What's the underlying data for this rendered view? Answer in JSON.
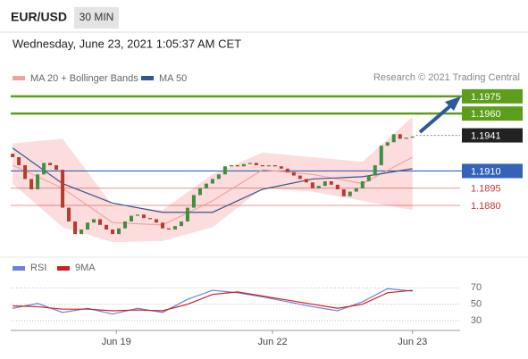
{
  "header": {
    "symbol": "EUR/USD",
    "interval": "30 MIN",
    "timestamp": "Wednesday, June 23, 2021 1:05:37 AM CET"
  },
  "chart_data": {
    "type": "candlestick",
    "credit": "Research © 2021 Trading Central",
    "up_color": "#3f8f3f",
    "down_color": "#b83a2e",
    "open": [
      1.1925,
      1.1922,
      1.1915,
      1.1903,
      1.1894,
      1.1907,
      1.1917,
      1.1915,
      1.1911,
      1.1878,
      1.1866,
      1.1855,
      1.1859,
      1.1865,
      1.1868,
      1.1863,
      1.1859,
      1.1855,
      1.186,
      1.1866,
      1.1871,
      1.1872,
      1.1869,
      1.1868,
      1.1865,
      1.186,
      1.1859,
      1.1862,
      1.1866,
      1.1878,
      1.1889,
      1.1895,
      1.1899,
      1.1903,
      1.1907,
      1.1914,
      1.1915,
      1.1914,
      1.1916,
      1.1917,
      1.1915,
      1.1914,
      1.1915,
      1.1914,
      1.1912,
      1.1909,
      1.1906,
      1.1903,
      1.19,
      1.1895,
      1.1897,
      1.1901,
      1.1898,
      1.1894,
      1.1888,
      1.1892,
      1.1895,
      1.1901,
      1.1906,
      1.1915,
      1.1932,
      1.1935,
      1.1942,
      1.1938,
      1.1939
    ],
    "close": [
      1.1922,
      1.1915,
      1.1903,
      1.1894,
      1.1907,
      1.1917,
      1.1915,
      1.1911,
      1.1878,
      1.1866,
      1.1855,
      1.1859,
      1.1865,
      1.1868,
      1.1863,
      1.1859,
      1.1855,
      1.186,
      1.1866,
      1.1871,
      1.1872,
      1.1869,
      1.1868,
      1.1865,
      1.186,
      1.1859,
      1.1862,
      1.1866,
      1.1878,
      1.1889,
      1.1895,
      1.1899,
      1.1903,
      1.1907,
      1.1914,
      1.1915,
      1.1914,
      1.1916,
      1.1917,
      1.1915,
      1.1914,
      1.1915,
      1.1914,
      1.1912,
      1.1909,
      1.1906,
      1.1903,
      1.19,
      1.1895,
      1.1897,
      1.1901,
      1.1898,
      1.1894,
      1.1888,
      1.1892,
      1.1895,
      1.1901,
      1.1906,
      1.1915,
      1.1932,
      1.1935,
      1.1942,
      1.1938,
      1.1939,
      1.194
    ],
    "series": [
      {
        "name": "MA 20 + Bollinger Bands",
        "color": "#f0a3a3",
        "band_color": "#fbd6d6",
        "x": [
          0,
          8,
          16,
          24,
          32,
          40,
          48,
          56,
          64
        ],
        "values": [
          1.1915,
          1.1895,
          1.1865,
          1.1863,
          1.1884,
          1.1911,
          1.1907,
          1.1899,
          1.1922
        ],
        "upper": [
          1.1934,
          1.1938,
          1.188,
          1.1876,
          1.1907,
          1.1926,
          1.1922,
          1.1918,
          1.1957
        ],
        "lower": [
          1.1899,
          1.1861,
          1.1848,
          1.1849,
          1.1861,
          1.1895,
          1.1892,
          1.1884,
          1.1876
        ]
      },
      {
        "name": "MA 50",
        "color": "#35578a",
        "x": [
          0,
          8,
          16,
          24,
          32,
          40,
          48,
          56,
          64
        ],
        "values": [
          1.193,
          1.1899,
          1.1882,
          1.1874,
          1.1874,
          1.1894,
          1.1903,
          1.1905,
          1.1912
        ]
      }
    ],
    "levels": [
      {
        "value": 1.1975,
        "label": "1.1975",
        "color": "#5c9e1c",
        "style": "box"
      },
      {
        "value": 1.196,
        "label": "1.1960",
        "color": "#5c9e1c",
        "style": "box"
      },
      {
        "value": 1.1941,
        "label": "1.1941",
        "color": "#222222",
        "style": "current"
      },
      {
        "value": 1.191,
        "label": "1.1910",
        "color": "#3563b8",
        "style": "box"
      },
      {
        "value": 1.1895,
        "label": "1.1895",
        "color": "#c43a3a",
        "style": "text"
      },
      {
        "value": 1.188,
        "label": "1.1880",
        "color": "#c43a3a",
        "style": "text"
      }
    ],
    "ylim": [
      1.1845,
      1.1985
    ],
    "xlim": [
      -0.3,
      70.9
    ],
    "xticks": [
      {
        "value": 16.6,
        "label": "Jun 19"
      },
      {
        "value": 41.6,
        "label": "Jun 22"
      },
      {
        "value": 64,
        "label": "Jun 23"
      }
    ],
    "rsi": {
      "ylim": [
        18,
        78
      ],
      "yticks": [
        70,
        50,
        30
      ],
      "series": [
        {
          "name": "RSI",
          "color": "#6b82d8",
          "x": [
            0,
            4,
            8,
            12,
            16,
            20,
            24,
            28,
            32,
            36,
            40,
            44,
            48,
            52,
            56,
            60,
            64
          ],
          "values": [
            45,
            51,
            40,
            45,
            38,
            45,
            40,
            56,
            67,
            64,
            59,
            53,
            47,
            42,
            53,
            69,
            66
          ]
        },
        {
          "name": "9MA",
          "color": "#cc2020",
          "x": [
            0,
            4,
            8,
            12,
            16,
            20,
            24,
            28,
            32,
            36,
            40,
            44,
            48,
            52,
            56,
            60,
            64
          ],
          "values": [
            48,
            47,
            44,
            44,
            42,
            43,
            42,
            50,
            62,
            65,
            60,
            55,
            50,
            45,
            50,
            64,
            67
          ]
        }
      ]
    }
  }
}
